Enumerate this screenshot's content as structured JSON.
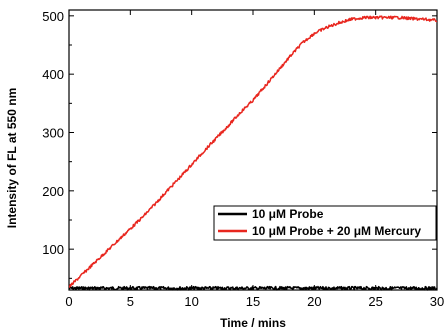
{
  "chart_data": {
    "type": "line",
    "xlabel": "Time / mins",
    "ylabel": "Intensity of FL at 550 nm",
    "xlim": [
      0,
      30
    ],
    "ylim": [
      30,
      510
    ],
    "xticks": [
      0,
      5,
      10,
      15,
      20,
      25,
      30
    ],
    "yticks": [
      100,
      200,
      300,
      400,
      500
    ],
    "grid": false,
    "legend": "lower-right",
    "series": [
      {
        "name": "10 μM Probe",
        "color": "#000000",
        "x": [
          0,
          5,
          10,
          15,
          20,
          25,
          30
        ],
        "y": [
          33,
          33,
          33,
          33,
          33,
          33,
          33
        ]
      },
      {
        "name": "10 μM Probe + 20 μM Mercury",
        "color": "#e8261e",
        "x": [
          0,
          1,
          2,
          3,
          4,
          5,
          6,
          7,
          8,
          9,
          10,
          11,
          12,
          13,
          14,
          15,
          16,
          17,
          18,
          19,
          20,
          21,
          22,
          23,
          24,
          25,
          26,
          27,
          28,
          29,
          30
        ],
        "y": [
          35,
          55,
          75,
          95,
          115,
          135,
          155,
          177,
          200,
          222,
          245,
          268,
          290,
          312,
          335,
          355,
          380,
          405,
          430,
          453,
          470,
          480,
          488,
          494,
          497,
          497,
          497,
          497,
          495,
          494,
          492
        ]
      }
    ]
  }
}
